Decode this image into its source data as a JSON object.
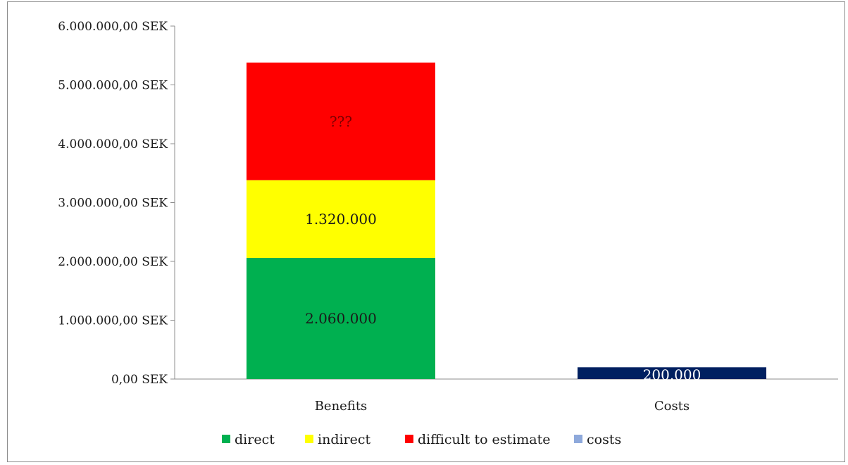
{
  "chart_data": {
    "type": "bar",
    "stacked": true,
    "categories": [
      "Benefits",
      "Costs"
    ],
    "ylim": [
      0,
      6000000
    ],
    "y_ticks": [
      {
        "value": 0,
        "label": "0,00 SEK"
      },
      {
        "value": 1000000,
        "label": "1.000.000,00 SEK"
      },
      {
        "value": 2000000,
        "label": "2.000.000,00 SEK"
      },
      {
        "value": 3000000,
        "label": "3.000.000,00 SEK"
      },
      {
        "value": 4000000,
        "label": "4.000.000,00 SEK"
      },
      {
        "value": 5000000,
        "label": "5.000.000,00 SEK"
      },
      {
        "value": 6000000,
        "label": "6.000.000,00 SEK"
      }
    ],
    "series": [
      {
        "name": "direct",
        "color": "#00b050",
        "values": [
          2060000,
          0
        ],
        "data_labels": [
          "2.060.000",
          ""
        ],
        "label_color": "#1a1a1a"
      },
      {
        "name": "indirect",
        "color": "#ffff00",
        "values": [
          1320000,
          0
        ],
        "data_labels": [
          "1.320.000",
          ""
        ],
        "label_color": "#1a1a1a"
      },
      {
        "name": "difficult to estimate",
        "color": "#ff0000",
        "values": [
          2000000,
          0
        ],
        "data_labels": [
          "???",
          ""
        ],
        "label_color": "#7a0000"
      },
      {
        "name": "costs",
        "color": "#002060",
        "legend_color": "#8ea9db",
        "values": [
          0,
          200000
        ],
        "data_labels": [
          "",
          "200.000"
        ],
        "label_color": "#ffffff"
      }
    ],
    "legend_position": "bottom",
    "grid": false
  }
}
